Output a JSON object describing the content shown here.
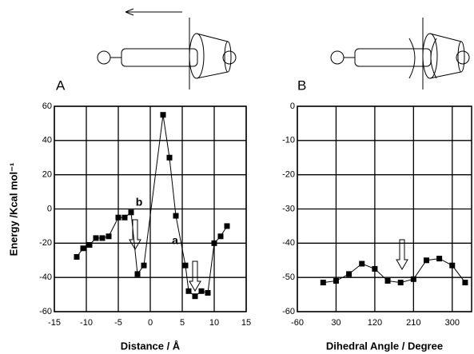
{
  "chart_data": [
    {
      "type": "scatter",
      "label": "A",
      "x_label": "Distance / Å",
      "y_label": "Energy /Kcal mol⁻¹",
      "x": [
        -11.5,
        -10.5,
        -9.5,
        -8.5,
        -7.5,
        -6.5,
        -5,
        -4,
        -3,
        -2,
        -1,
        2,
        3,
        4,
        5.5,
        6,
        7,
        8,
        9,
        10,
        11,
        12
      ],
      "values": [
        -28,
        -23,
        -21,
        -17,
        -17,
        -16,
        -5,
        -5,
        -2,
        -38,
        -33,
        55,
        30,
        -4,
        -33,
        -48,
        -51,
        -48,
        -49,
        -20,
        -16,
        -10
      ],
      "color": "#000000",
      "xlim": [
        -15,
        15
      ],
      "xticks": [
        -15,
        -10,
        -5,
        0,
        5,
        10,
        15
      ],
      "ylim": [
        -60,
        60
      ],
      "yticks": [
        -60,
        -40,
        -20,
        0,
        20,
        40,
        60
      ],
      "grid": true,
      "annotations": [
        "a",
        "b"
      ]
    },
    {
      "type": "scatter",
      "label": "B",
      "x_label": "Dihedral Angle / Degree",
      "x": [
        0,
        30,
        60,
        90,
        120,
        150,
        180,
        210,
        240,
        270,
        300,
        330
      ],
      "values": [
        -51.5,
        -51,
        -49,
        -46,
        -47.5,
        -51,
        -51.5,
        -50.5,
        -45,
        -44.5,
        -46.5,
        -51.5
      ],
      "color": "#000000",
      "xlim": [
        -60,
        345
      ],
      "xticks": [
        -60,
        30,
        120,
        210,
        300
      ],
      "ylim": [
        -60,
        0
      ],
      "yticks": [
        -60,
        -50,
        -40,
        -30,
        -20,
        -10,
        0
      ],
      "grid": true
    }
  ]
}
